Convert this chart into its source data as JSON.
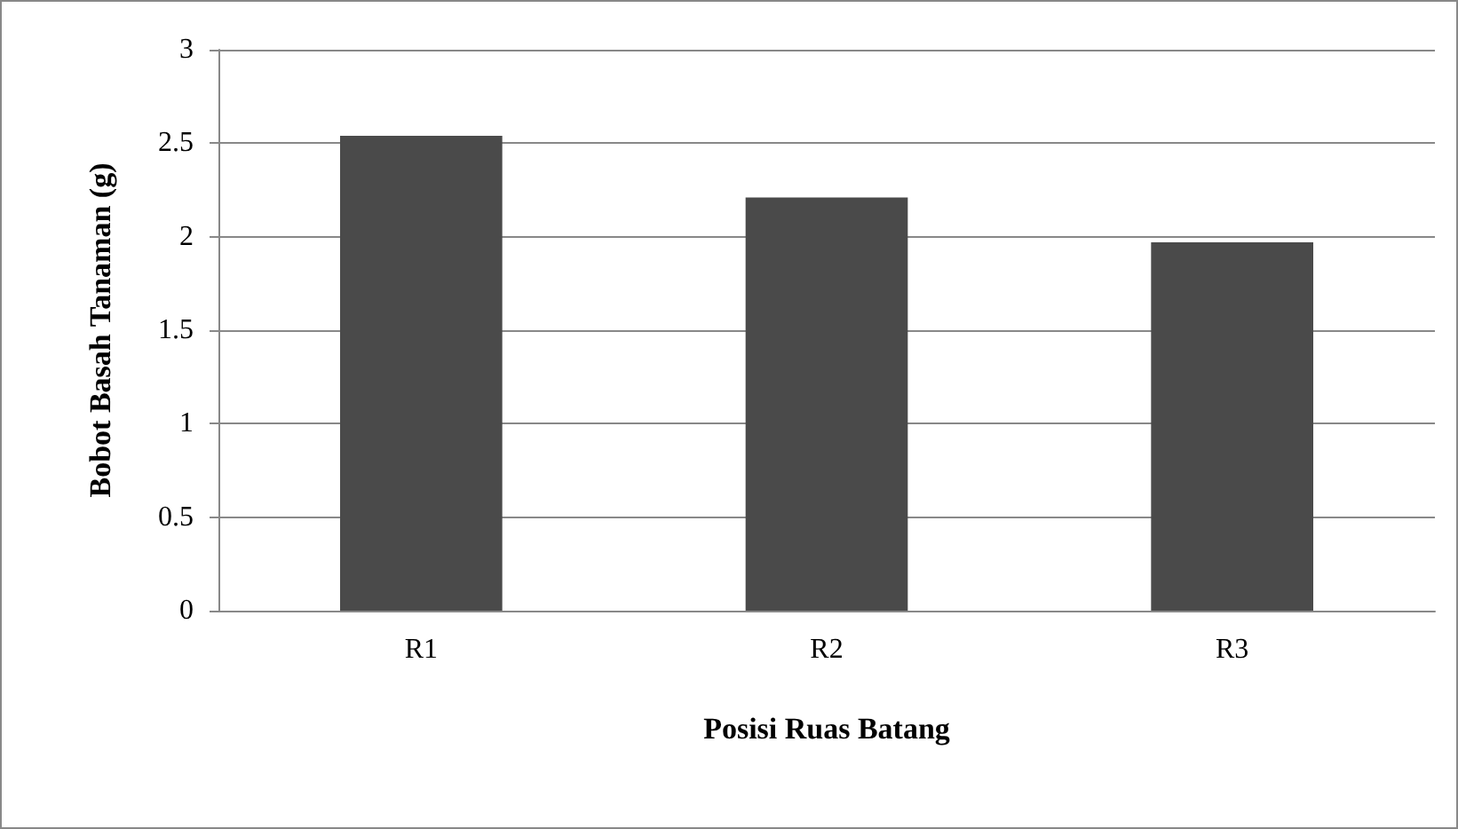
{
  "chart_data": {
    "type": "bar",
    "xlabel": "Posisi Ruas Batang",
    "ylabel": "Bobot Basah Tanaman (g)",
    "categories": [
      "R1",
      "R2",
      "R3"
    ],
    "values": [
      2.54,
      2.21,
      1.97
    ],
    "color": "#4a4a4a",
    "ylim": [
      0,
      3
    ],
    "yticks": [
      0,
      0.5,
      1,
      1.5,
      2,
      2.5,
      3
    ],
    "grid": "y"
  }
}
